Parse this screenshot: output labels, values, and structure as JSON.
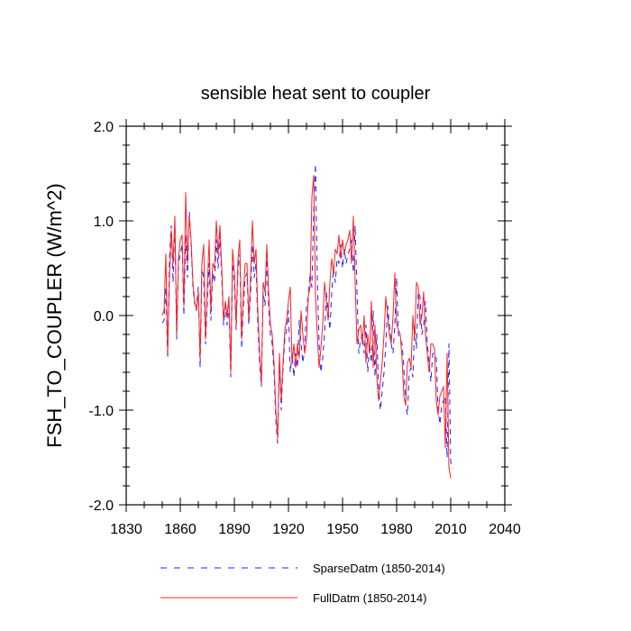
{
  "chart_data": {
    "type": "line",
    "title": "sensible heat sent to coupler",
    "xlabel": "",
    "ylabel": "FSH_TO_COUPLER  (W/m^2)",
    "xlim": [
      1830,
      2040
    ],
    "ylim": [
      -2.0,
      2.0
    ],
    "x_ticks": [
      1830,
      1860,
      1890,
      1920,
      1950,
      1980,
      2010,
      2040
    ],
    "x_tick_labels": [
      "1830",
      "1860",
      "1890",
      "1920",
      "1950",
      "1980",
      "2010",
      "2040"
    ],
    "y_ticks": [
      -2.0,
      -1.0,
      0.0,
      1.0,
      2.0
    ],
    "y_tick_labels": [
      "-2.0",
      "-1.0",
      "0.0",
      "1.0",
      "2.0"
    ],
    "grid": false,
    "legend_position": "bottom",
    "series": [
      {
        "name": "SparseDatm (1850-2014)",
        "color": "#2020ff",
        "dash": "dashed",
        "x_start": 1850,
        "x_step": 1,
        "values": [
          -0.08,
          -0.05,
          0.3,
          -0.45,
          0.6,
          0.95,
          0.35,
          1.0,
          -0.25,
          0.55,
          0.65,
          0.75,
          0.0,
          0.85,
          0.4,
          1.1,
          0.75,
          0.3,
          0.12,
          0.1,
          0.3,
          -0.55,
          0.5,
          0.4,
          -0.3,
          0.15,
          0.55,
          -0.05,
          0.45,
          0.35,
          0.8,
          0.5,
          0.85,
          0.4,
          -0.1,
          0.1,
          -0.1,
          0.1,
          -0.65,
          0.55,
          0.35,
          -0.15,
          0.5,
          0.65,
          -0.35,
          0.1,
          0.4,
          0.45,
          -0.1,
          0.25,
          0.75,
          0.4,
          0.55,
          -0.1,
          -0.5,
          -0.75,
          0.25,
          0.1,
          0.6,
          0.1,
          -0.2,
          -0.3,
          -0.6,
          -1.1,
          -1.35,
          -0.5,
          -1.0,
          -0.55,
          -0.25,
          -0.15,
          0.05,
          -0.6,
          -0.4,
          -0.65,
          -0.4,
          -0.55,
          -0.05,
          -0.3,
          -0.5,
          -0.35,
          0.1,
          0.2,
          0.45,
          0.3,
          1.1,
          1.6,
          0.4,
          -0.3,
          -0.6,
          -0.45,
          -0.2,
          0.25,
          0.05,
          -0.15,
          0.25,
          0.5,
          0.35,
          0.6,
          0.55,
          0.75,
          0.5,
          0.7,
          0.55,
          0.65,
          0.7,
          0.8,
          0.45,
          0.95,
          0.25,
          -0.4,
          -0.25,
          -0.2,
          -0.4,
          -0.1,
          -0.6,
          -0.3,
          -0.5,
          0.05,
          -0.65,
          -0.2,
          -0.75,
          -1.0,
          -0.8,
          -0.6,
          -0.3,
          0.1,
          -0.1,
          -0.3,
          -0.4,
          -0.1,
          0.4,
          -0.2,
          -0.25,
          -0.3,
          -0.55,
          -0.95,
          -1.05,
          -0.6,
          -0.55,
          -0.65,
          -0.1,
          -0.35,
          0.25,
          0.2,
          -0.2,
          -0.1,
          0.15,
          -0.3,
          -0.5,
          -0.7,
          -0.4,
          -0.4,
          -0.45,
          -1.0,
          -1.15,
          -0.95,
          -0.9,
          -0.85,
          -1.5,
          -0.3,
          -1.55,
          -1.62
        ],
        "_n": 165
      },
      {
        "name": "FullDatm (1850-2014)",
        "color": "#ff2020",
        "dash": "solid",
        "x_start": 1850,
        "x_step": 1,
        "values": [
          0.0,
          0.05,
          0.65,
          -0.4,
          0.4,
          0.9,
          0.55,
          1.05,
          -0.2,
          0.6,
          0.8,
          0.85,
          0.1,
          1.3,
          0.55,
          1.05,
          0.8,
          0.35,
          0.15,
          0.05,
          0.25,
          -0.45,
          0.55,
          0.75,
          -0.25,
          0.3,
          0.8,
          0.05,
          0.55,
          0.5,
          1.0,
          0.65,
          0.95,
          0.5,
          -0.05,
          0.15,
          0.0,
          0.2,
          -0.6,
          0.7,
          0.45,
          -0.1,
          0.6,
          0.8,
          -0.25,
          0.25,
          0.55,
          0.55,
          -0.05,
          0.4,
          1.0,
          0.55,
          0.7,
          0.05,
          -0.4,
          -0.7,
          0.35,
          0.25,
          0.75,
          0.25,
          -0.1,
          -0.2,
          -0.5,
          -1.0,
          -1.3,
          -0.4,
          -0.9,
          -0.5,
          -0.15,
          -0.05,
          0.15,
          0.3,
          -0.5,
          -0.3,
          -0.55,
          -0.3,
          -0.45,
          0.05,
          -0.2,
          -0.4,
          -0.25,
          0.2,
          0.3,
          1.25,
          1.48,
          0.2,
          -0.2,
          -0.55,
          -0.35,
          -0.1,
          0.35,
          0.15,
          -0.05,
          0.35,
          0.6,
          0.45,
          0.7,
          0.65,
          0.85,
          0.6,
          0.8,
          0.65,
          0.75,
          0.8,
          0.9,
          0.55,
          1.05,
          0.35,
          -0.3,
          -0.15,
          -0.1,
          -0.3,
          0.0,
          -0.5,
          -0.2,
          -0.4,
          0.15,
          -0.55,
          -0.1,
          -0.65,
          -0.9,
          -0.7,
          -0.5,
          -0.2,
          0.2,
          0.0,
          -0.2,
          -0.3,
          0.0,
          0.45,
          -0.1,
          -0.15,
          -0.2,
          -0.45,
          -0.85,
          -0.95,
          -0.5,
          -0.45,
          -0.55,
          0.0,
          -0.25,
          0.35,
          0.3,
          -0.1,
          0.0,
          0.25,
          -0.2,
          -0.4,
          -0.6,
          -0.3,
          -0.3,
          -0.35,
          -0.9,
          -1.05,
          -0.85,
          -0.8,
          -0.75,
          -1.4,
          -0.4,
          -1.6,
          -1.72
        ],
        "_n": 165
      }
    ]
  }
}
